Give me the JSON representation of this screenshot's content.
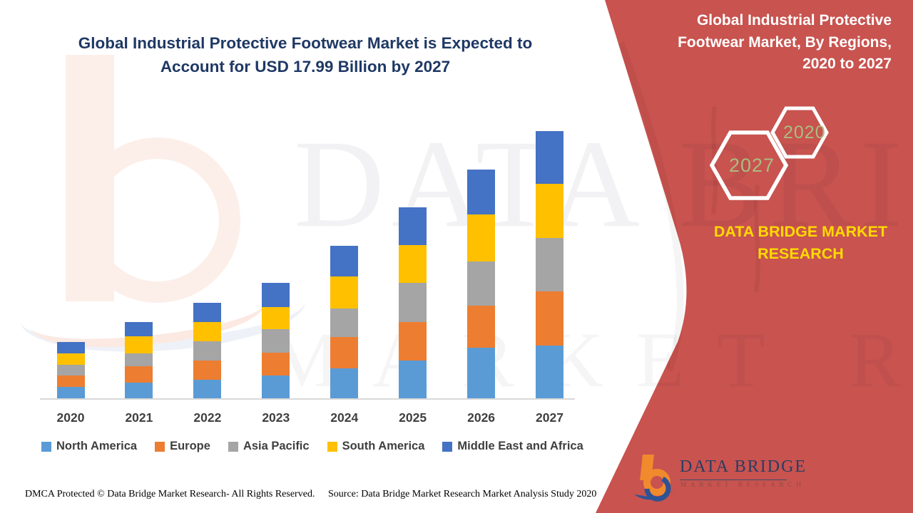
{
  "main_title": {
    "line1": "Global Industrial Protective Footwear Market is Expected to",
    "line2": "Account for USD 17.99 Billion by 2027"
  },
  "right_panel": {
    "title_line1": "Global Industrial Protective",
    "title_line2": "Footwear Market, By Regions,",
    "title_line3": "2020 to 2027",
    "hexagon_front_label": "2027",
    "hexagon_back_label": "2020",
    "brand_line1": "DATA BRIDGE MARKET",
    "brand_line2": "RESEARCH",
    "accent_color": "#c8534f",
    "brand_text_color": "#ffda00",
    "hexagon_label_color": "#a9bd80"
  },
  "watermark": {
    "line1": "DATA BRIDGE",
    "line2": "MARKET RESEARCH"
  },
  "logo": {
    "name_text": "DATA BRIDGE",
    "subtitle_text": "MARKET RESEARCH"
  },
  "footer": {
    "dmca_text": "DMCA Protected © Data Bridge Market Research- All Rights Reserved.",
    "source_text": "Source: Data Bridge Market Research Market Analysis Study 2020"
  },
  "chart_data": {
    "type": "bar",
    "stacked": true,
    "title": "Global Industrial Protective Footwear Market, By Regions, 2020 to 2027",
    "unit": "USD Billion",
    "categories": [
      "2020",
      "2021",
      "2022",
      "2023",
      "2024",
      "2025",
      "2026",
      "2027"
    ],
    "series": [
      {
        "name": "North America",
        "color": "#5b9bd5",
        "values": [
          0.77,
          1.06,
          1.25,
          1.54,
          2.02,
          2.54,
          3.41,
          3.55
        ]
      },
      {
        "name": "Europe",
        "color": "#ed7d31",
        "values": [
          0.77,
          1.1,
          1.3,
          1.54,
          2.11,
          2.59,
          2.83,
          3.65
        ]
      },
      {
        "name": "Asia Pacific",
        "color": "#a5a5a5",
        "values": [
          0.72,
          0.86,
          1.3,
          1.58,
          1.92,
          2.64,
          2.98,
          3.6
        ]
      },
      {
        "name": "South America",
        "color": "#ffc000",
        "values": [
          0.77,
          1.15,
          1.3,
          1.49,
          2.16,
          2.54,
          3.17,
          3.65
        ]
      },
      {
        "name": "Middle East and Africa",
        "color": "#4472c4",
        "values": [
          0.77,
          0.96,
          1.3,
          1.63,
          2.06,
          2.54,
          3.02,
          3.55
        ]
      }
    ],
    "totals_estimated": [
      3.8,
      5.13,
      6.45,
      7.78,
      10.27,
      12.85,
      15.41,
      18.0
    ],
    "highlight_total_2027": 17.99,
    "ylim": [
      0,
      18
    ],
    "gridlines": false,
    "y_axis_visible": false,
    "legend_position": "bottom"
  }
}
